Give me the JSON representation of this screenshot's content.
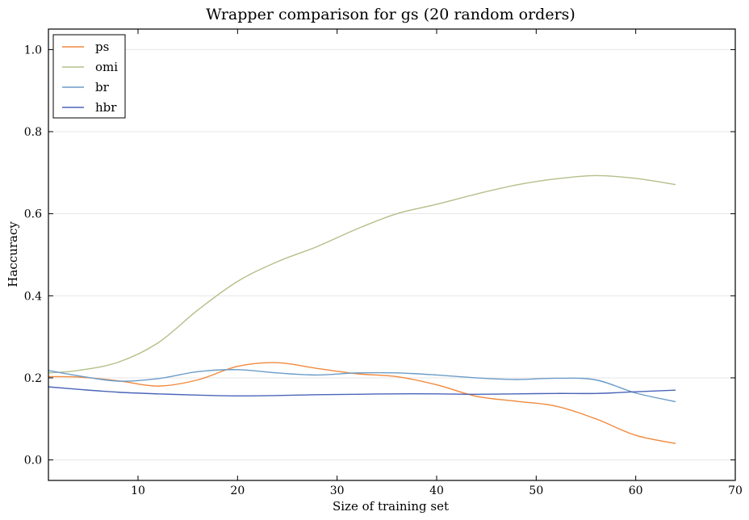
{
  "chart_data": {
    "type": "line",
    "title": "Wrapper comparison for gs (20 random orders)",
    "xlabel": "Size of training set",
    "ylabel": "Haccuracy",
    "xlim": [
      1,
      70
    ],
    "ylim": [
      -0.05,
      1.05
    ],
    "xticks": [
      10,
      20,
      30,
      40,
      50,
      60,
      70
    ],
    "yticks": [
      0.0,
      0.2,
      0.4,
      0.6,
      0.8,
      1.0
    ],
    "xtick_labels": [
      "10",
      "20",
      "30",
      "40",
      "50",
      "60",
      "70"
    ],
    "ytick_labels": [
      "0.0",
      "0.2",
      "0.4",
      "0.6",
      "0.8",
      "1.0"
    ],
    "grid": "horizontal",
    "legend_position": "top-left",
    "x": [
      1,
      4,
      8,
      12,
      16,
      20,
      24,
      28,
      32,
      36,
      40,
      44,
      48,
      52,
      56,
      60,
      64
    ],
    "series": [
      {
        "name": "ps",
        "color": "#f0893e",
        "values": [
          0.203,
          0.202,
          0.193,
          0.18,
          0.195,
          0.228,
          0.237,
          0.223,
          0.21,
          0.203,
          0.183,
          0.155,
          0.143,
          0.131,
          0.1,
          0.06,
          0.04
        ]
      },
      {
        "name": "omi",
        "color": "#b3c08a",
        "values": [
          0.212,
          0.218,
          0.238,
          0.285,
          0.365,
          0.435,
          0.483,
          0.52,
          0.563,
          0.6,
          0.623,
          0.648,
          0.67,
          0.685,
          0.693,
          0.686,
          0.671
        ]
      },
      {
        "name": "br",
        "color": "#6b9cc8",
        "values": [
          0.218,
          0.205,
          0.192,
          0.198,
          0.215,
          0.22,
          0.212,
          0.207,
          0.212,
          0.212,
          0.207,
          0.2,
          0.196,
          0.199,
          0.195,
          0.163,
          0.142
        ]
      },
      {
        "name": "hbr",
        "color": "#4b64b9",
        "values": [
          0.178,
          0.172,
          0.165,
          0.161,
          0.158,
          0.156,
          0.157,
          0.159,
          0.16,
          0.161,
          0.161,
          0.16,
          0.161,
          0.162,
          0.162,
          0.166,
          0.17
        ]
      }
    ]
  }
}
